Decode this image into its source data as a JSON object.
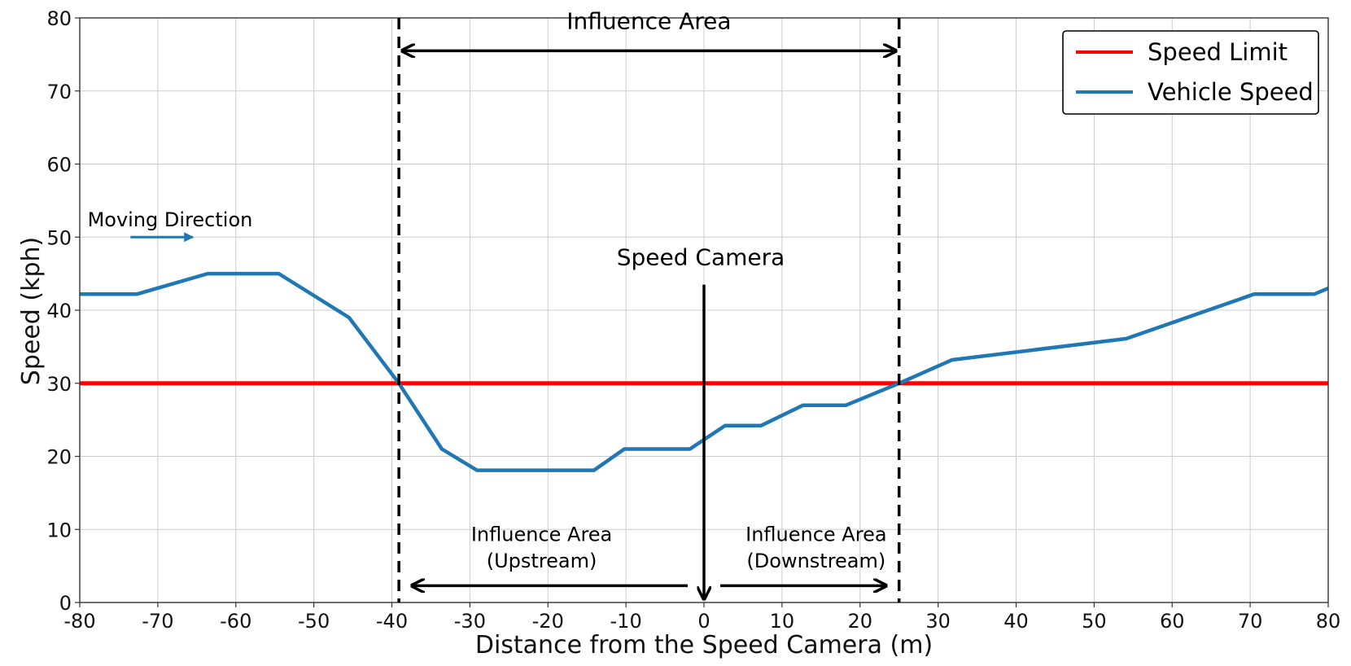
{
  "chart_data": {
    "type": "line",
    "xlabel": "Distance from the Speed Camera (m)",
    "ylabel": "Speed (kph)",
    "xlim": [
      -80,
      80
    ],
    "ylim": [
      0,
      80
    ],
    "xticks": [
      -80,
      -70,
      -60,
      -50,
      -40,
      -30,
      -20,
      -10,
      0,
      10,
      20,
      30,
      40,
      50,
      60,
      70,
      80
    ],
    "yticks": [
      0,
      10,
      20,
      30,
      40,
      50,
      60,
      70,
      80
    ],
    "grid": true,
    "legend_position": "top-right",
    "series": [
      {
        "name": "Speed Limit",
        "color": "#ff0000",
        "x": [
          -80,
          80
        ],
        "y": [
          30,
          30
        ]
      },
      {
        "name": "Vehicle Speed",
        "color": "#1f77b4",
        "x": [
          -80,
          -72.7,
          -63.6,
          -54.5,
          -45.5,
          -39.1,
          -33.6,
          -29.1,
          -14.1,
          -10.2,
          -1.8,
          2.7,
          7.3,
          12.7,
          18.2,
          25,
          31.8,
          54.1,
          70.5,
          78.2,
          80
        ],
        "y": [
          42.2,
          42.2,
          45,
          45,
          39,
          30,
          21,
          18.1,
          18.1,
          21,
          21,
          24.2,
          24.2,
          27,
          27,
          30,
          33.2,
          36.1,
          42.2,
          42.2,
          43
        ]
      }
    ],
    "annotations": {
      "influence_area": {
        "text": "Influence Area",
        "x_start": -39.1,
        "x_end": 25
      },
      "speed_camera": {
        "text": "Speed Camera",
        "x": 0
      },
      "upstream": {
        "line1": "Influence Area",
        "line2": "(Upstream)"
      },
      "downstream": {
        "line1": "Influence Area",
        "line2": "(Downstream)"
      },
      "moving_direction": {
        "text": "Moving Direction",
        "color": "#1f77b4"
      }
    }
  }
}
